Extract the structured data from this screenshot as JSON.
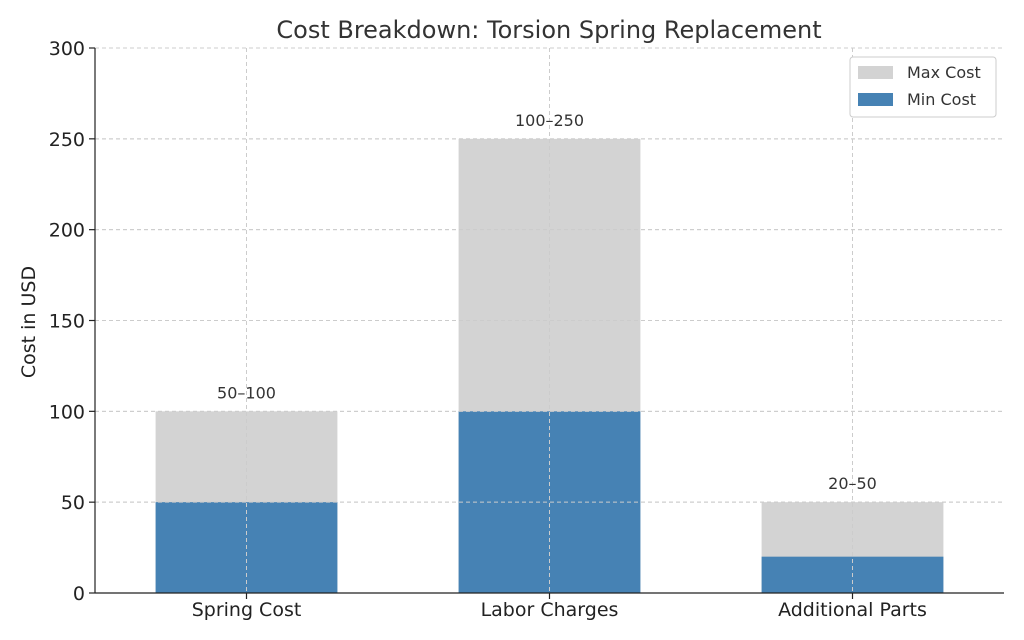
{
  "chart_data": {
    "type": "bar",
    "title": "Cost Breakdown: Torsion Spring Replacement",
    "xlabel": "",
    "ylabel": "Cost in USD",
    "categories": [
      "Spring Cost",
      "Labor Charges",
      "Additional Parts"
    ],
    "series": [
      {
        "name": "Max Cost",
        "values": [
          100,
          250,
          50
        ],
        "color": "#d3d3d3"
      },
      {
        "name": "Min Cost",
        "values": [
          50,
          100,
          20
        ],
        "color": "#4682b4"
      }
    ],
    "data_labels": [
      "50–100",
      "100–250",
      "20–50"
    ],
    "ylim": [
      0,
      300
    ],
    "yticks": [
      0,
      50,
      100,
      150,
      200,
      250,
      300
    ],
    "grid": true,
    "legend_position": "top-right"
  }
}
